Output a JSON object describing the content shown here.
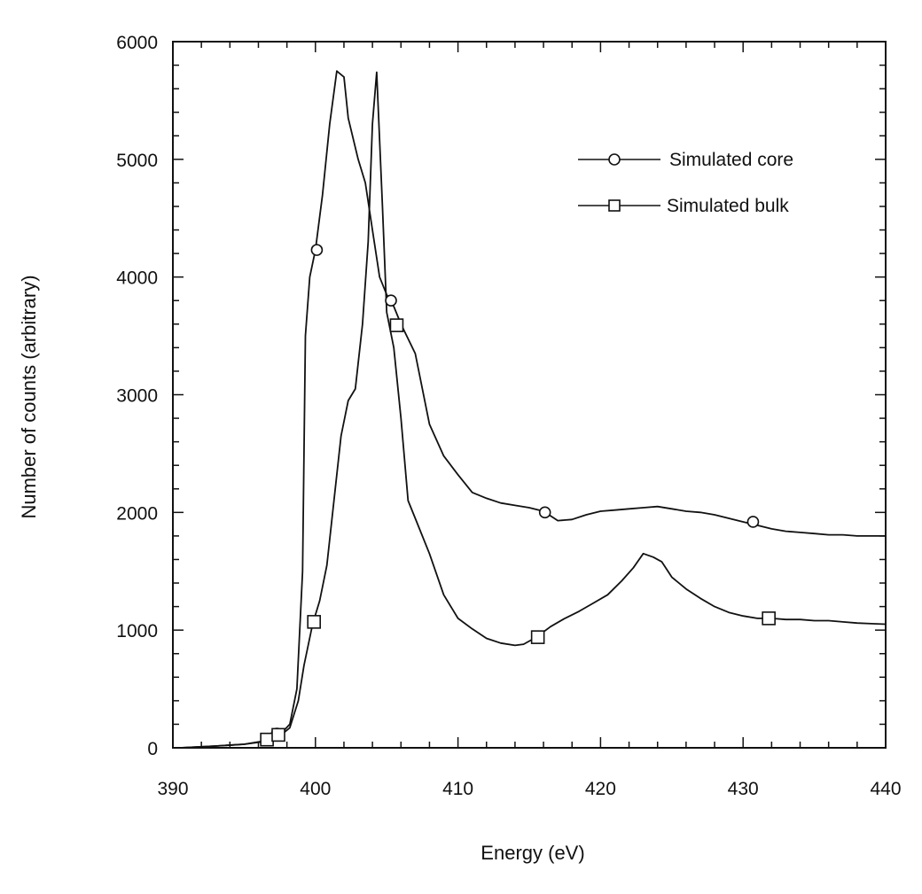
{
  "chart_data": {
    "type": "line",
    "title": "",
    "xlabel": "Energy (eV)",
    "ylabel": "Number of counts (arbitrary)",
    "xlim": [
      390,
      440
    ],
    "ylim": [
      0,
      6000
    ],
    "x_ticks": [
      390,
      400,
      410,
      420,
      430,
      440
    ],
    "x_tick_labels": [
      "390",
      "400",
      "410",
      "420",
      "430",
      "440"
    ],
    "y_ticks": [
      0,
      1000,
      2000,
      3000,
      4000,
      5000,
      6000
    ],
    "y_tick_labels": [
      "0",
      "1000",
      "2000",
      "3000",
      "4000",
      "5000",
      "6000"
    ],
    "grid": false,
    "legend_position": "top-right",
    "line_color": "#111111",
    "series": [
      {
        "name": "Simulated core",
        "marker": "circle",
        "x": [
          390.5,
          393,
          395,
          396.5,
          397.5,
          398.2,
          398.7,
          399.1,
          399.3,
          399.6,
          400.0,
          400.5,
          401.0,
          401.5,
          402.0,
          402.3,
          403.0,
          403.5,
          404.0,
          404.5,
          405.0,
          405.5,
          406.0,
          407.0,
          408.0,
          409.0,
          410.0,
          411.0,
          412.0,
          413.0,
          414.0,
          415.0,
          416.0,
          417.0,
          418.0,
          419.0,
          420.0,
          421.0,
          422.0,
          423.0,
          424.0,
          425.0,
          426.0,
          427.0,
          428.0,
          429.0,
          430.0,
          431.0,
          432.0,
          433.0,
          434.0,
          435.0,
          436.0,
          437.0,
          438.0,
          439.0,
          440.0
        ],
        "y": [
          0,
          15,
          30,
          60,
          110,
          200,
          500,
          1500,
          3500,
          4000,
          4230,
          4700,
          5300,
          5750,
          5700,
          5350,
          5000,
          4800,
          4400,
          4000,
          3850,
          3750,
          3600,
          3350,
          2750,
          2480,
          2320,
          2170,
          2120,
          2080,
          2060,
          2040,
          2010,
          1930,
          1940,
          1980,
          2010,
          2020,
          2030,
          2040,
          2050,
          2030,
          2010,
          2000,
          1980,
          1950,
          1920,
          1890,
          1860,
          1840,
          1830,
          1820,
          1810,
          1810,
          1800,
          1800,
          1800
        ],
        "marker_x": [
          397.3,
          400.1,
          405.3,
          416.1,
          430.7
        ],
        "marker_y": [
          120,
          4230,
          3800,
          2000,
          1920
        ]
      },
      {
        "name": "Simulated bulk",
        "marker": "square",
        "x": [
          390.5,
          393,
          395,
          396.5,
          397.5,
          398.2,
          398.8,
          399.2,
          399.8,
          400.3,
          400.8,
          401.3,
          401.8,
          402.3,
          402.8,
          403.3,
          403.7,
          404.0,
          404.3,
          404.7,
          405.0,
          405.5,
          406.0,
          406.5,
          407.0,
          408.0,
          409.0,
          410.0,
          411.0,
          412.0,
          413.0,
          414.0,
          414.6,
          415.5,
          416.5,
          417.5,
          418.5,
          419.5,
          420.5,
          421.5,
          422.3,
          423.0,
          423.7,
          424.3,
          425.0,
          426.0,
          427.0,
          428.0,
          429.0,
          430.0,
          431.0,
          432.0,
          433.0,
          434.0,
          435.0,
          436.0,
          437.0,
          438.0,
          439.0,
          440.0
        ],
        "y": [
          0,
          15,
          30,
          55,
          100,
          170,
          400,
          700,
          1050,
          1250,
          1550,
          2100,
          2650,
          2950,
          3050,
          3600,
          4300,
          5300,
          5740,
          4600,
          3700,
          3400,
          2800,
          2100,
          1950,
          1650,
          1300,
          1100,
          1010,
          930,
          890,
          870,
          880,
          940,
          1030,
          1100,
          1160,
          1230,
          1300,
          1420,
          1530,
          1650,
          1620,
          1580,
          1450,
          1350,
          1270,
          1200,
          1150,
          1120,
          1100,
          1100,
          1090,
          1090,
          1080,
          1080,
          1070,
          1060,
          1055,
          1050
        ],
        "marker_x": [
          396.6,
          397.4,
          399.9,
          405.7,
          415.6,
          431.8
        ],
        "marker_y": [
          70,
          110,
          1070,
          3590,
          940,
          1100
        ]
      }
    ]
  }
}
